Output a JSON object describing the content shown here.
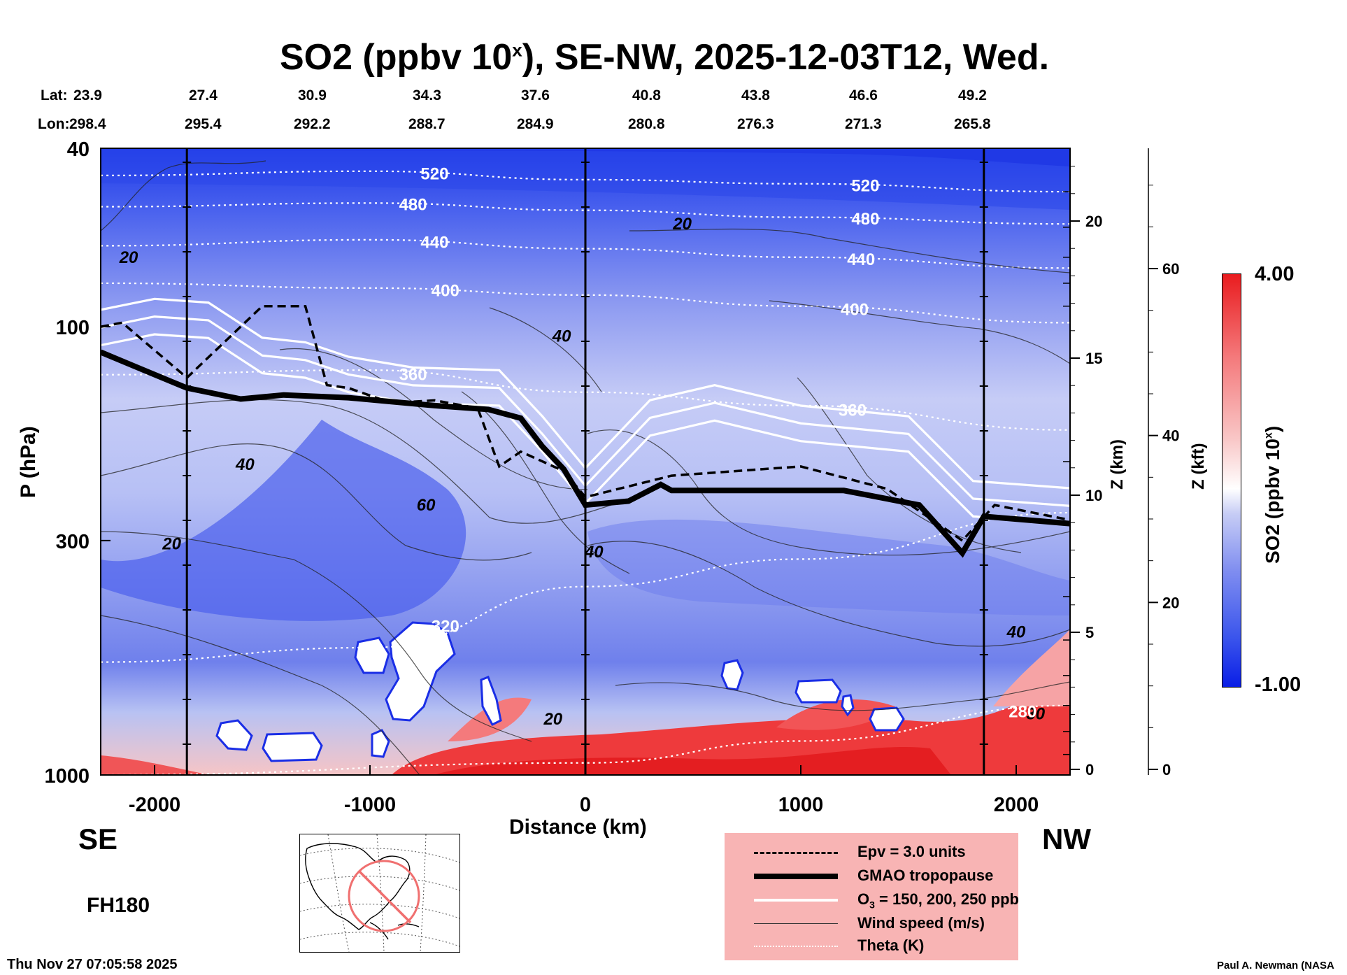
{
  "title": {
    "main": "SO2 (ppbv 10",
    "sup": "x",
    "rest": "), SE-NW, 2025-12-03T12, Wed."
  },
  "header": {
    "lat_label": "Lat:",
    "lon_label": "Lon:",
    "lat": [
      "23.9",
      "27.4",
      "30.9",
      "34.3",
      "37.6",
      "40.8",
      "43.8",
      "46.6",
      "49.2"
    ],
    "lon": [
      "298.4",
      "295.4",
      "292.2",
      "288.7",
      "284.9",
      "280.8",
      "276.3",
      "271.3",
      "265.8"
    ]
  },
  "axes": {
    "x_label": "Distance (km)",
    "y_label": "P (hPa)",
    "z_km_label": "Z (km)",
    "z_kft_label": "Z (kft)",
    "cbar_label_main": "SO2 (ppbv 10",
    "cbar_label_sup": "x",
    "cbar_label_rest": ")"
  },
  "chart_data": {
    "type": "heatmap",
    "title": "SO2 (ppbv 10^x), SE-NW, 2025-12-03T12, Wed.",
    "xlabel": "Distance (km)",
    "ylabel": "P (hPa)",
    "xlim": [
      -2250,
      2250
    ],
    "ylim": [
      1000,
      40
    ],
    "y_scale": "log",
    "x_ticks": [
      -2000,
      -1000,
      0,
      1000,
      2000
    ],
    "x_tick_labels": [
      "-2000",
      "-1000",
      "0",
      "1000",
      "2000"
    ],
    "y_ticks": [
      40,
      100,
      300,
      1000
    ],
    "y_tick_labels": [
      "40",
      "100",
      "300",
      "1000"
    ],
    "z_km_ticks": [
      0,
      5,
      10,
      15,
      20
    ],
    "z_km_tick_labels": [
      "0",
      "5",
      "10",
      "15",
      "20"
    ],
    "z_kft_ticks": [
      0,
      20,
      40,
      60
    ],
    "z_kft_tick_labels": [
      "0",
      "20",
      "40",
      "60"
    ],
    "colorbar": {
      "min": -1.0,
      "max": 4.0,
      "min_label": "-1.00",
      "max_label": "4.00",
      "colors": [
        "#0a1ee6",
        "#ffffff",
        "#e91c1f"
      ]
    },
    "vertical_section_markers_km": [
      -1850,
      0,
      1850
    ],
    "theta_contours": [
      {
        "label": "520",
        "points": [
          [
            -2250,
            46
          ],
          [
            -1000,
            45
          ],
          [
            0,
            47
          ],
          [
            1000,
            48
          ],
          [
            2250,
            50
          ]
        ]
      },
      {
        "label": "480",
        "points": [
          [
            -2250,
            54
          ],
          [
            -1000,
            53
          ],
          [
            0,
            55
          ],
          [
            1000,
            57
          ],
          [
            2250,
            59
          ]
        ]
      },
      {
        "label": "440",
        "points": [
          [
            -2250,
            66
          ],
          [
            -1000,
            64
          ],
          [
            0,
            67
          ],
          [
            1000,
            70
          ],
          [
            2250,
            74
          ]
        ]
      },
      {
        "label": "400",
        "points": [
          [
            -2250,
            80
          ],
          [
            -1000,
            82
          ],
          [
            0,
            85
          ],
          [
            1000,
            90
          ],
          [
            2250,
            98
          ]
        ]
      },
      {
        "label": "360",
        "points": [
          [
            -2250,
            128
          ],
          [
            -1000,
            125
          ],
          [
            0,
            140
          ],
          [
            1000,
            150
          ],
          [
            2250,
            170
          ]
        ]
      },
      {
        "label": "320",
        "points": [
          [
            -2250,
            560
          ],
          [
            -1000,
            520
          ],
          [
            0,
            380
          ],
          [
            1000,
            330
          ],
          [
            2250,
            260
          ]
        ]
      },
      {
        "label": "280",
        "points": [
          [
            -2250,
            1000
          ],
          [
            0,
            940
          ],
          [
            1000,
            840
          ],
          [
            2250,
            700
          ]
        ]
      }
    ],
    "wind_labels": [
      {
        "label": "20",
        "x": -2120,
        "p": 70
      },
      {
        "label": "20",
        "x": 450,
        "p": 59
      },
      {
        "label": "40",
        "x": -110,
        "p": 105
      },
      {
        "label": "40",
        "x": -1580,
        "p": 203
      },
      {
        "label": "60",
        "x": -740,
        "p": 250
      },
      {
        "label": "20",
        "x": -1920,
        "p": 305
      },
      {
        "label": "40",
        "x": 40,
        "p": 318
      },
      {
        "label": "20",
        "x": -150,
        "p": 750
      },
      {
        "label": "40",
        "x": 2000,
        "p": 480
      },
      {
        "label": "30",
        "x": 2090,
        "p": 730
      }
    ],
    "tropopause_gmao": [
      [
        -2250,
        114
      ],
      [
        -2050,
        125
      ],
      [
        -1850,
        137
      ],
      [
        -1600,
        145
      ],
      [
        -1400,
        142
      ],
      [
        -1100,
        144
      ],
      [
        -900,
        147
      ],
      [
        -700,
        150
      ],
      [
        -450,
        153
      ],
      [
        -300,
        160
      ],
      [
        -200,
        185
      ],
      [
        -100,
        208
      ],
      [
        0,
        250
      ],
      [
        200,
        245
      ],
      [
        350,
        225
      ],
      [
        400,
        232
      ],
      [
        1200,
        232
      ],
      [
        1550,
        250
      ],
      [
        1750,
        320
      ],
      [
        1850,
        265
      ],
      [
        2250,
        275
      ]
    ],
    "epv_3": [
      [
        -2250,
        100
      ],
      [
        -2150,
        98
      ],
      [
        -1850,
        130
      ],
      [
        -1500,
        90
      ],
      [
        -1300,
        90
      ],
      [
        -1200,
        135
      ],
      [
        -1100,
        137
      ],
      [
        -900,
        148
      ],
      [
        -700,
        146
      ],
      [
        -500,
        152
      ],
      [
        -400,
        205
      ],
      [
        -300,
        190
      ],
      [
        -100,
        210
      ],
      [
        0,
        240
      ],
      [
        400,
        215
      ],
      [
        1000,
        205
      ],
      [
        1400,
        230
      ],
      [
        1750,
        300
      ],
      [
        1900,
        250
      ],
      [
        2250,
        270
      ]
    ],
    "ozone_150_200_250": [
      [
        -2250,
        110
      ],
      [
        -2000,
        104
      ],
      [
        -1750,
        106
      ],
      [
        -1500,
        127
      ],
      [
        -1300,
        130
      ],
      [
        -1100,
        140
      ],
      [
        -800,
        148
      ],
      [
        -400,
        150
      ],
      [
        -200,
        190
      ],
      [
        0,
        248
      ],
      [
        300,
        175
      ],
      [
        600,
        162
      ],
      [
        1000,
        180
      ],
      [
        1500,
        190
      ],
      [
        1800,
        265
      ],
      [
        2250,
        275
      ]
    ],
    "legend": [
      {
        "label": "Epv = 3.0 units",
        "style": "dashed"
      },
      {
        "label": "GMAO tropopause",
        "style": "thick"
      },
      {
        "label": "O3 = 150, 200, 250 ppb",
        "style": "white"
      },
      {
        "label": "Wind speed (m/s)",
        "style": "thin"
      },
      {
        "label": "Theta (K)",
        "style": "dotted"
      }
    ]
  },
  "labels": {
    "se": "SE",
    "nw": "NW",
    "fh": "FH180",
    "timestamp": "Thu Nov 27 07:05:58 2025",
    "credit": "Paul A. Newman (NASA"
  },
  "legend_o3_prefix": "O",
  "legend_o3_sub": "3",
  "legend_o3_rest": " = 150, 200, 250 ppb"
}
